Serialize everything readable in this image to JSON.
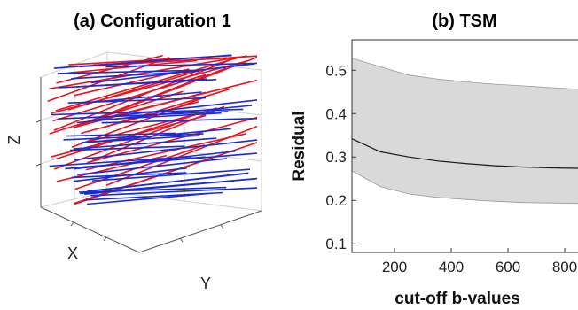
{
  "chart_data": [
    {
      "type": "3d-line-segments",
      "title": "(a) Configuration 1",
      "xlabel": "X",
      "ylabel": "Y",
      "zlabel": "Z",
      "series": [
        {
          "color": "#e8141e"
        },
        {
          "color": "#1a2bd6"
        }
      ],
      "grid": true,
      "box": true
    },
    {
      "type": "line",
      "title": "(b) TSM",
      "xlabel": "cut-off b-values",
      "ylabel": "Residual",
      "xlim": [
        50,
        850
      ],
      "ylim": [
        0.08,
        0.57
      ],
      "xticks": [
        "200",
        "400",
        "600",
        "800"
      ],
      "xtick_values": [
        200,
        400,
        600,
        800
      ],
      "yticks": [
        "0.1",
        "0.2",
        "0.3",
        "0.4",
        "0.5"
      ],
      "ytick_values": [
        0.1,
        0.2,
        0.3,
        0.4,
        0.5
      ],
      "x": [
        50,
        150,
        250,
        350,
        450,
        550,
        650,
        750,
        850
      ],
      "mean": [
        0.342,
        0.312,
        0.3,
        0.291,
        0.285,
        0.28,
        0.277,
        0.275,
        0.274
      ],
      "upper": [
        0.528,
        0.508,
        0.489,
        0.48,
        0.473,
        0.468,
        0.464,
        0.46,
        0.456
      ],
      "lower": [
        0.268,
        0.232,
        0.215,
        0.207,
        0.202,
        0.198,
        0.195,
        0.194,
        0.193
      ],
      "band_color": "#d9d9d9",
      "line_color": "#1a1a1a",
      "grid": false
    }
  ]
}
